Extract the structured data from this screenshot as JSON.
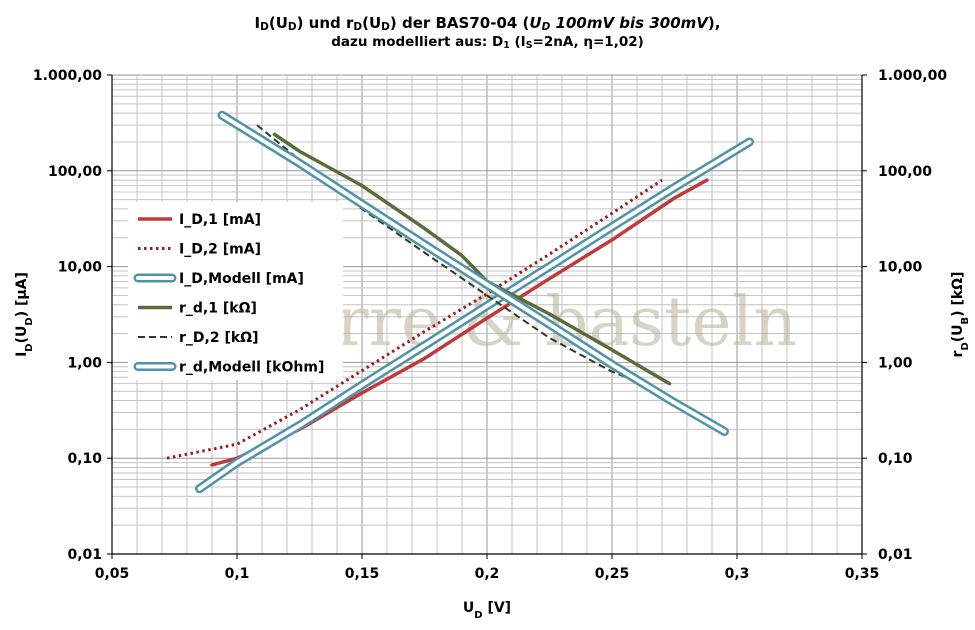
{
  "title": {
    "part1": "I",
    "part1_sub": "D",
    "part2": "(U",
    "part2_sub": "D",
    "part3": ") und r",
    "part3_sub": "D",
    "part4": "(U",
    "part4_sub": "D",
    "part5": ") der BAS70-04 (",
    "part6_italic": "U",
    "part6_sub": "D",
    "part7_italic": " 100mV bis 300mV",
    "part8": "),"
  },
  "subtitle": {
    "part1": "dazu modelliert aus: D",
    "part1_sub": "1",
    "part2": " (I",
    "part2_sub": "S",
    "part3": "=2nA, η=1,02)"
  },
  "watermark": "gitarre & basteln",
  "chart_data": {
    "type": "line",
    "x_axis": {
      "title_main": "U",
      "title_sub": "D",
      "title_rest": " [V]",
      "range": [
        0.05,
        0.35
      ],
      "ticks": [
        0.05,
        0.1,
        0.15,
        0.2,
        0.25,
        0.3,
        0.35
      ],
      "tick_labels": [
        "0,05",
        "0,1",
        "0,15",
        "0,2",
        "0,25",
        "0,3",
        "0,35"
      ]
    },
    "y_left": {
      "title_main": "I",
      "title_sub": "D",
      "title_mid": "(U",
      "title_sub2": "D",
      "title_rest": ") [µA]",
      "scale": "log",
      "range": [
        0.01,
        1000
      ],
      "tick_values": [
        0.01,
        0.1,
        1,
        10,
        100,
        1000
      ],
      "tick_labels": [
        "0,01",
        "0,10",
        "1,00",
        "10,00",
        "100,00",
        "1.000,00"
      ]
    },
    "y_right": {
      "title_main": "r",
      "title_sub": "D",
      "title_mid": "(U",
      "title_sub2": "B",
      "title_rest": ") [kΩ]",
      "scale": "log",
      "range": [
        0.01,
        1000
      ],
      "tick_values": [
        0.01,
        0.1,
        1,
        10,
        100,
        1000
      ],
      "tick_labels": [
        "0,01",
        "0,10",
        "1,00",
        "10,00",
        "100,00",
        "1.000,00"
      ]
    },
    "grid": true,
    "legend_position": "left",
    "series": [
      {
        "name": "I_D,1 [mA]",
        "style": "solid",
        "color": "#c0393b",
        "x": [
          0.09,
          0.1,
          0.125,
          0.15,
          0.175,
          0.2,
          0.225,
          0.25,
          0.275,
          0.288
        ],
        "y": [
          0.085,
          0.1,
          0.2,
          0.48,
          1.1,
          2.9,
          7.5,
          19,
          52,
          80
        ]
      },
      {
        "name": "I_D,2 [mA]",
        "style": "dotted",
        "color": "#9a1c1f",
        "x": [
          0.072,
          0.1,
          0.125,
          0.15,
          0.175,
          0.2,
          0.225,
          0.25,
          0.27
        ],
        "y": [
          0.1,
          0.14,
          0.32,
          0.82,
          2.1,
          5.2,
          13.5,
          36,
          80
        ]
      },
      {
        "name": "I_D,Modell [mA]",
        "style": "outline",
        "color": "#4f93a9",
        "x": [
          0.085,
          0.1,
          0.125,
          0.15,
          0.175,
          0.2,
          0.225,
          0.25,
          0.275,
          0.305
        ],
        "y": [
          0.048,
          0.09,
          0.22,
          0.58,
          1.5,
          3.9,
          10,
          26,
          67,
          200
        ]
      },
      {
        "name": "r_d,1 [kΩ]",
        "style": "solid",
        "color": "#5b6b3a",
        "x": [
          0.115,
          0.125,
          0.15,
          0.175,
          0.19,
          0.2,
          0.225,
          0.25,
          0.273
        ],
        "y": [
          240,
          160,
          70,
          25,
          13,
          7,
          3.2,
          1.35,
          0.6
        ]
      },
      {
        "name": "r_D,2 [kΩ]",
        "style": "dashed",
        "color": "#2e3b1e",
        "x": [
          0.108,
          0.125,
          0.15,
          0.175,
          0.2,
          0.225,
          0.25,
          0.266
        ],
        "y": [
          300,
          130,
          40,
          14,
          5,
          1.8,
          0.8,
          0.55
        ]
      },
      {
        "name": "r_d,Modell [kOhm]",
        "style": "outline",
        "color": "#4f93a9",
        "x": [
          0.094,
          0.125,
          0.15,
          0.175,
          0.2,
          0.225,
          0.25,
          0.275,
          0.295
        ],
        "y": [
          380,
          120,
          45,
          17,
          6.5,
          2.5,
          0.95,
          0.38,
          0.19
        ]
      }
    ]
  }
}
